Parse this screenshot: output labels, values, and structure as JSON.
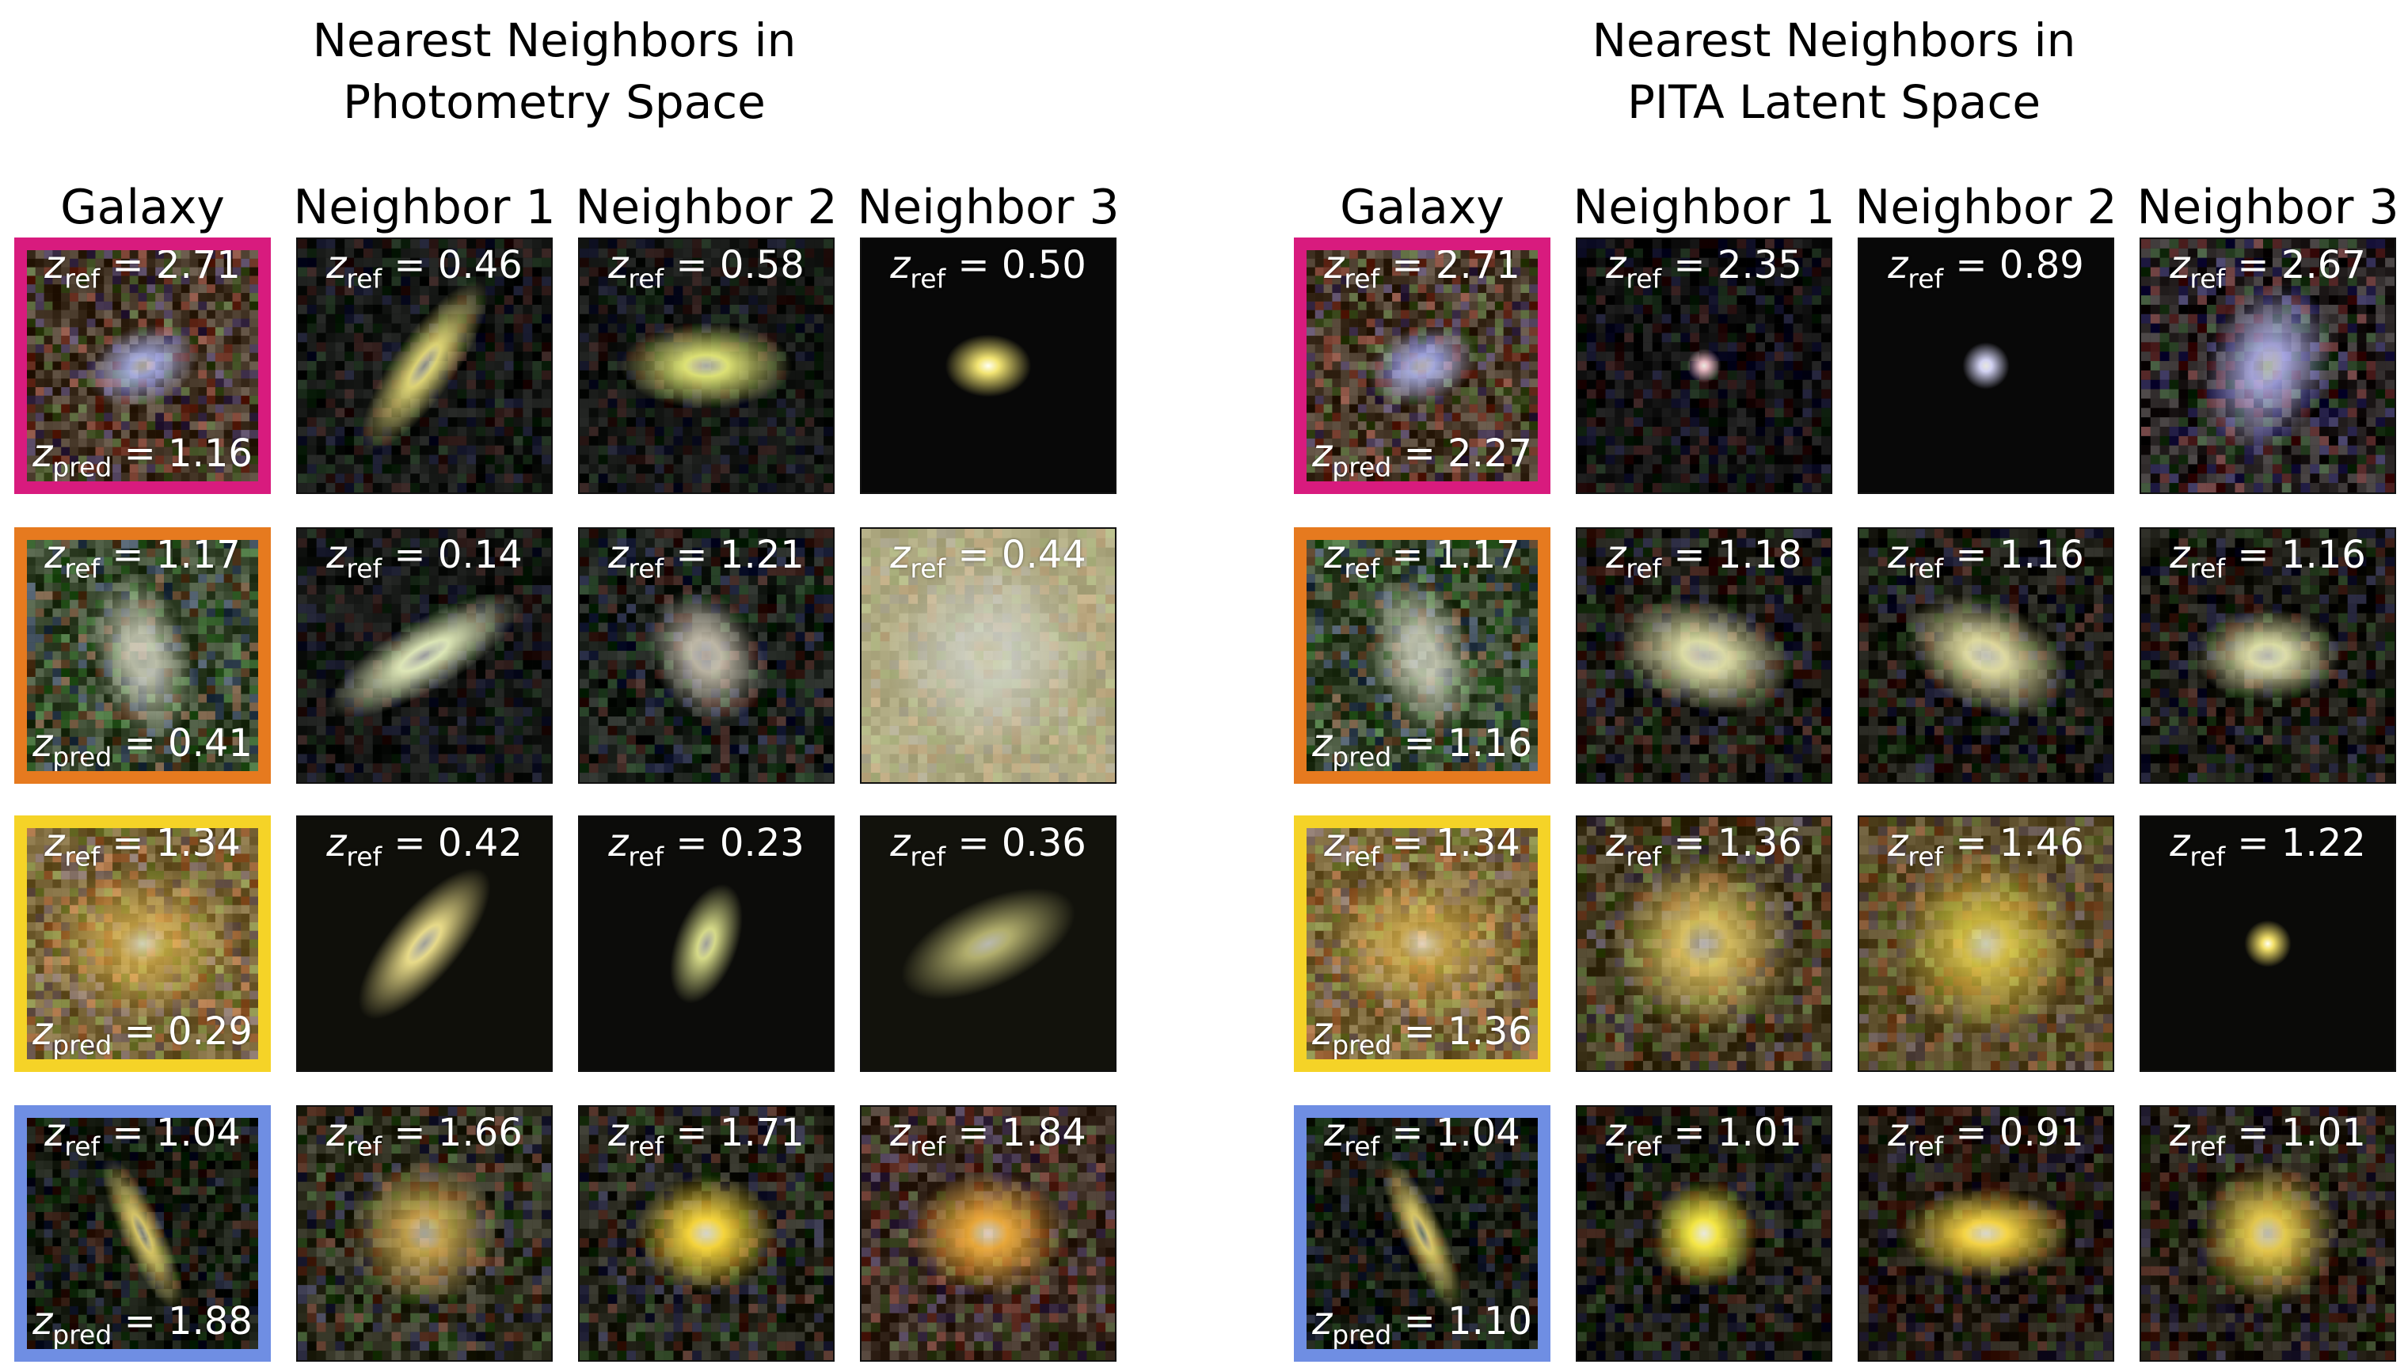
{
  "panels": [
    {
      "title_lines": [
        "Nearest Neighbors in",
        "Photometry Space"
      ],
      "column_headers": [
        "Galaxy",
        "Neighbor 1",
        "Neighbor 2",
        "Neighbor 3"
      ],
      "rows": [
        {
          "frame_color": "#d81b7e",
          "galaxy": {
            "z_ref": "2.71",
            "z_pred": "1.16"
          },
          "neighbors": [
            "0.46",
            "0.58",
            "0.50"
          ]
        },
        {
          "frame_color": "#e67a1f",
          "galaxy": {
            "z_ref": "1.17",
            "z_pred": "0.41"
          },
          "neighbors": [
            "0.14",
            "1.21",
            "0.44"
          ]
        },
        {
          "frame_color": "#f5d327",
          "galaxy": {
            "z_ref": "1.34",
            "z_pred": "0.29"
          },
          "neighbors": [
            "0.42",
            "0.23",
            "0.36"
          ]
        },
        {
          "frame_color": "#6f8ee3",
          "galaxy": {
            "z_ref": "1.04",
            "z_pred": "1.88"
          },
          "neighbors": [
            "1.66",
            "1.71",
            "1.84"
          ]
        }
      ]
    },
    {
      "title_lines": [
        "Nearest Neighbors in",
        "PITA Latent Space"
      ],
      "column_headers": [
        "Galaxy",
        "Neighbor 1",
        "Neighbor 2",
        "Neighbor 3"
      ],
      "rows": [
        {
          "frame_color": "#d81b7e",
          "galaxy": {
            "z_ref": "2.71",
            "z_pred": "2.27"
          },
          "neighbors": [
            "2.35",
            "0.89",
            "2.67"
          ]
        },
        {
          "frame_color": "#e67a1f",
          "galaxy": {
            "z_ref": "1.17",
            "z_pred": "1.16"
          },
          "neighbors": [
            "1.18",
            "1.16",
            "1.16"
          ]
        },
        {
          "frame_color": "#f5d327",
          "galaxy": {
            "z_ref": "1.34",
            "z_pred": "1.36"
          },
          "neighbors": [
            "1.36",
            "1.46",
            "1.22"
          ]
        },
        {
          "frame_color": "#6f8ee3",
          "galaxy": {
            "z_ref": "1.04",
            "z_pred": "1.10"
          },
          "neighbors": [
            "1.01",
            "0.91",
            "1.01"
          ]
        }
      ]
    }
  ],
  "label_text": {
    "z": "z",
    "ref_subscript": "ref",
    "pred_subscript": "pred",
    "equals": " = "
  }
}
